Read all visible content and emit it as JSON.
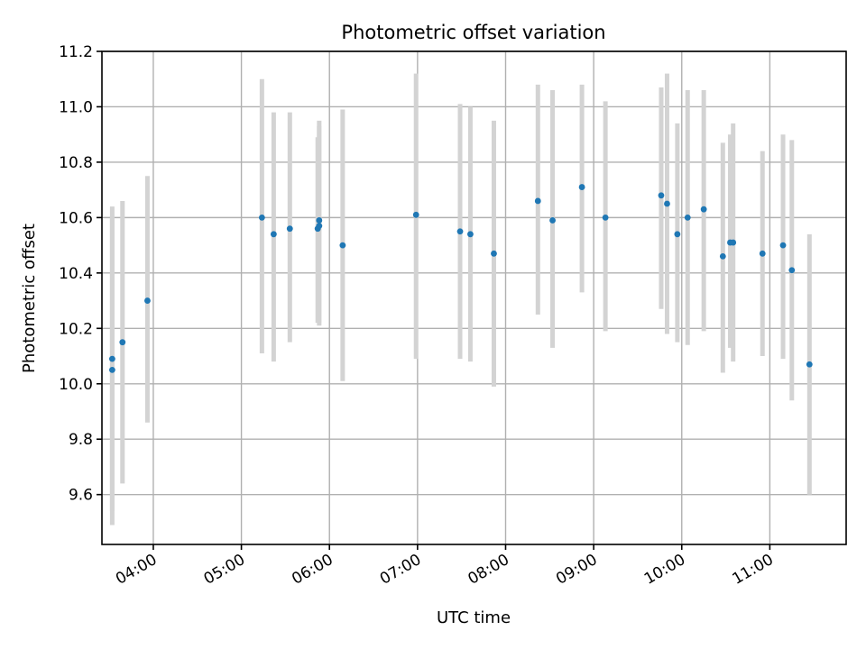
{
  "chart_data": {
    "type": "scatter",
    "title": "Photometric offset variation",
    "xlabel": "UTC time",
    "ylabel": "Photometric offset",
    "x_type": "time",
    "xlim": [
      "03:25",
      "11:52"
    ],
    "ylim": [
      9.42,
      11.2
    ],
    "x_ticks": [
      "04:00",
      "05:00",
      "06:00",
      "07:00",
      "08:00",
      "09:00",
      "10:00",
      "11:00"
    ],
    "y_ticks": [
      "9.6",
      "9.8",
      "10.0",
      "10.2",
      "10.4",
      "10.6",
      "10.8",
      "11.0",
      "11.2"
    ],
    "grid": true,
    "colors": {
      "points": "#1f77b4",
      "error_bars": "#d3d3d3",
      "grid": "#b0b0b0"
    },
    "series": [
      {
        "points": [
          {
            "x": "03:32",
            "y": 10.09,
            "err_low": 9.54,
            "err_high": 10.64
          },
          {
            "x": "03:32",
            "y": 10.05,
            "err_low": 9.49,
            "err_high": 10.6
          },
          {
            "x": "03:39",
            "y": 10.15,
            "err_low": 9.64,
            "err_high": 10.66
          },
          {
            "x": "03:56",
            "y": 10.3,
            "err_low": 9.86,
            "err_high": 10.75
          },
          {
            "x": "05:14",
            "y": 10.6,
            "err_low": 10.11,
            "err_high": 11.1
          },
          {
            "x": "05:22",
            "y": 10.54,
            "err_low": 10.08,
            "err_high": 10.98
          },
          {
            "x": "05:33",
            "y": 10.56,
            "err_low": 10.15,
            "err_high": 10.98
          },
          {
            "x": "05:52",
            "y": 10.56,
            "err_low": 10.22,
            "err_high": 10.89
          },
          {
            "x": "05:53",
            "y": 10.59,
            "err_low": 10.21,
            "err_high": 10.95
          },
          {
            "x": "05:53",
            "y": 10.57,
            "err_low": 10.22,
            "err_high": 10.93
          },
          {
            "x": "06:09",
            "y": 10.5,
            "err_low": 10.01,
            "err_high": 10.99
          },
          {
            "x": "06:59",
            "y": 10.61,
            "err_low": 10.09,
            "err_high": 11.12
          },
          {
            "x": "07:29",
            "y": 10.55,
            "err_low": 10.09,
            "err_high": 11.01
          },
          {
            "x": "07:36",
            "y": 10.54,
            "err_low": 10.08,
            "err_high": 11.0
          },
          {
            "x": "07:52",
            "y": 10.47,
            "err_low": 9.99,
            "err_high": 10.95
          },
          {
            "x": "08:22",
            "y": 10.66,
            "err_low": 10.25,
            "err_high": 11.08
          },
          {
            "x": "08:32",
            "y": 10.59,
            "err_low": 10.13,
            "err_high": 11.06
          },
          {
            "x": "08:52",
            "y": 10.71,
            "err_low": 10.33,
            "err_high": 11.08
          },
          {
            "x": "09:08",
            "y": 10.6,
            "err_low": 10.19,
            "err_high": 11.02
          },
          {
            "x": "09:46",
            "y": 10.68,
            "err_low": 10.27,
            "err_high": 11.07
          },
          {
            "x": "09:50",
            "y": 10.65,
            "err_low": 10.18,
            "err_high": 11.12
          },
          {
            "x": "09:57",
            "y": 10.54,
            "err_low": 10.15,
            "err_high": 10.94
          },
          {
            "x": "10:04",
            "y": 10.6,
            "err_low": 10.14,
            "err_high": 11.06
          },
          {
            "x": "10:15",
            "y": 10.63,
            "err_low": 10.19,
            "err_high": 11.06
          },
          {
            "x": "10:28",
            "y": 10.46,
            "err_low": 10.04,
            "err_high": 10.87
          },
          {
            "x": "10:33",
            "y": 10.51,
            "err_low": 10.13,
            "err_high": 10.9
          },
          {
            "x": "10:35",
            "y": 10.51,
            "err_low": 10.08,
            "err_high": 10.94
          },
          {
            "x": "10:55",
            "y": 10.47,
            "err_low": 10.1,
            "err_high": 10.84
          },
          {
            "x": "11:09",
            "y": 10.5,
            "err_low": 10.09,
            "err_high": 10.9
          },
          {
            "x": "11:15",
            "y": 10.41,
            "err_low": 9.94,
            "err_high": 10.88
          },
          {
            "x": "11:27",
            "y": 10.07,
            "err_low": 9.6,
            "err_high": 10.54
          }
        ]
      }
    ]
  }
}
